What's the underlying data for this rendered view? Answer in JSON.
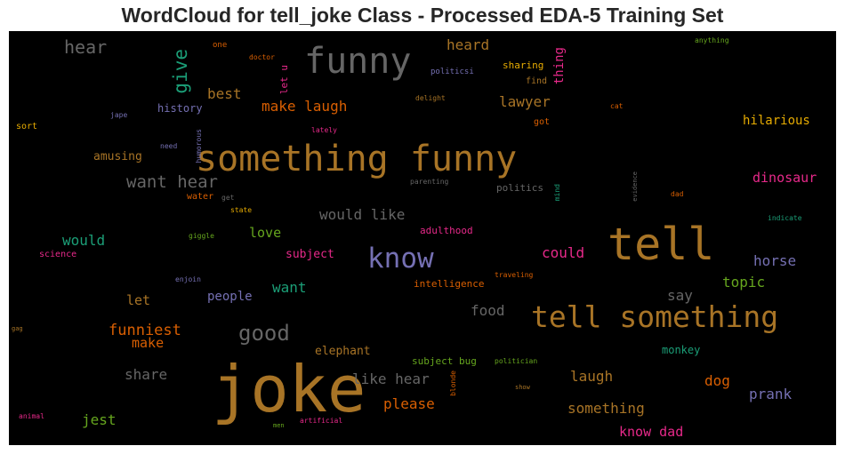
{
  "title": "WordCloud for tell_joke Class - Processed EDA-5 Training Set",
  "words": [
    {
      "text": "joke",
      "color": "#a87426"
    },
    {
      "text": "something funny",
      "color": "#a87426"
    },
    {
      "text": "tell",
      "color": "#a87426"
    },
    {
      "text": "tell something",
      "color": "#a87426"
    },
    {
      "text": "funny",
      "color": "#666666"
    },
    {
      "text": "know",
      "color": "#7570b3"
    },
    {
      "text": "good",
      "color": "#666666"
    },
    {
      "text": "want hear",
      "color": "#666666"
    },
    {
      "text": "give",
      "color": "#1b9e77"
    },
    {
      "text": "hear",
      "color": "#666666"
    },
    {
      "text": "thing",
      "color": "#e7298a"
    },
    {
      "text": "make laugh",
      "color": "#d95f02"
    },
    {
      "text": "best",
      "color": "#a87426"
    },
    {
      "text": "lawyer",
      "color": "#a87426"
    },
    {
      "text": "heard",
      "color": "#a87426"
    },
    {
      "text": "hilarious",
      "color": "#e6ab02"
    },
    {
      "text": "dinosaur",
      "color": "#e7298a"
    },
    {
      "text": "would like",
      "color": "#666666"
    },
    {
      "text": "would",
      "color": "#1b9e77"
    },
    {
      "text": "love",
      "color": "#66a61e"
    },
    {
      "text": "could",
      "color": "#e7298a"
    },
    {
      "text": "horse",
      "color": "#7570b3"
    },
    {
      "text": "topic",
      "color": "#66a61e"
    },
    {
      "text": "want",
      "color": "#1b9e77"
    },
    {
      "text": "say",
      "color": "#666666"
    },
    {
      "text": "let",
      "color": "#a87426"
    },
    {
      "text": "people",
      "color": "#7570b3"
    },
    {
      "text": "food",
      "color": "#666666"
    },
    {
      "text": "funniest",
      "color": "#d95f02"
    },
    {
      "text": "make",
      "color": "#d95f02"
    },
    {
      "text": "share",
      "color": "#666666"
    },
    {
      "text": "like hear",
      "color": "#666666"
    },
    {
      "text": "laugh",
      "color": "#a87426"
    },
    {
      "text": "dog",
      "color": "#d95f02"
    },
    {
      "text": "prank",
      "color": "#7570b3"
    },
    {
      "text": "please",
      "color": "#d95f02"
    },
    {
      "text": "something",
      "color": "#a87426"
    },
    {
      "text": "jest",
      "color": "#66a61e"
    },
    {
      "text": "know dad",
      "color": "#e7298a"
    },
    {
      "text": "amusing",
      "color": "#a87426"
    },
    {
      "text": "history",
      "color": "#7570b3"
    },
    {
      "text": "subject",
      "color": "#e7298a"
    },
    {
      "text": "elephant",
      "color": "#a87426"
    },
    {
      "text": "subject bug",
      "color": "#66a61e"
    },
    {
      "text": "monkey",
      "color": "#1b9e77"
    },
    {
      "text": "intelligence",
      "color": "#d95f02"
    },
    {
      "text": "adulthood",
      "color": "#e7298a"
    },
    {
      "text": "sharing",
      "color": "#e6ab02"
    },
    {
      "text": "find",
      "color": "#a87426"
    },
    {
      "text": "politics",
      "color": "#666666"
    },
    {
      "text": "got",
      "color": "#d95f02"
    },
    {
      "text": "sort",
      "color": "#e6ab02"
    },
    {
      "text": "science",
      "color": "#e7298a"
    },
    {
      "text": "one",
      "color": "#d95f02"
    },
    {
      "text": "doctor",
      "color": "#d95f02"
    },
    {
      "text": "let u",
      "color": "#e7298a"
    },
    {
      "text": "politicsi",
      "color": "#7570b3"
    },
    {
      "text": "delight",
      "color": "#a87426"
    },
    {
      "text": "cat",
      "color": "#d95f02"
    },
    {
      "text": "lately",
      "color": "#e7298a"
    },
    {
      "text": "jape",
      "color": "#7570b3"
    },
    {
      "text": "need",
      "color": "#7570b3"
    },
    {
      "text": "humorous",
      "color": "#7570b3"
    },
    {
      "text": "water",
      "color": "#d95f02"
    },
    {
      "text": "get",
      "color": "#666666"
    },
    {
      "text": "state",
      "color": "#e6ab02"
    },
    {
      "text": "parenting",
      "color": "#666666"
    },
    {
      "text": "giggle",
      "color": "#66a61e"
    },
    {
      "text": "enjoin",
      "color": "#7570b3"
    },
    {
      "text": "traveling",
      "color": "#d95f02"
    },
    {
      "text": "gag",
      "color": "#a87426"
    },
    {
      "text": "politician",
      "color": "#66a61e"
    },
    {
      "text": "blonde",
      "color": "#d95f02"
    },
    {
      "text": "show",
      "color": "#a87426"
    },
    {
      "text": "animal",
      "color": "#e7298a"
    },
    {
      "text": "men",
      "color": "#66a61e"
    },
    {
      "text": "artificial",
      "color": "#e7298a"
    },
    {
      "text": "anything",
      "color": "#66a61e"
    },
    {
      "text": "mind",
      "color": "#1b9e77"
    },
    {
      "text": "evidence",
      "color": "#666666"
    },
    {
      "text": "dad",
      "color": "#d95f02"
    },
    {
      "text": "indicate",
      "color": "#1b9e77"
    }
  ]
}
